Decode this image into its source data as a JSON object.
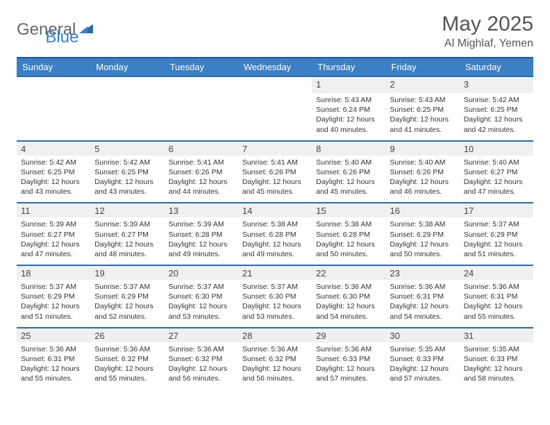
{
  "logo": {
    "general": "General",
    "blue": "Blue"
  },
  "title": "May 2025",
  "location": "Al Mighlaf, Yemen",
  "colors": {
    "header_bg": "#3b7fc4",
    "header_border": "#1f5a99",
    "daynum_bg": "#eef0f2",
    "text": "#333333",
    "title_text": "#555555"
  },
  "dayHeaders": [
    "Sunday",
    "Monday",
    "Tuesday",
    "Wednesday",
    "Thursday",
    "Friday",
    "Saturday"
  ],
  "weeks": [
    [
      null,
      null,
      null,
      null,
      {
        "n": "1",
        "sr": "5:43 AM",
        "ss": "6:24 PM",
        "dl": "12 hours and 40 minutes."
      },
      {
        "n": "2",
        "sr": "5:43 AM",
        "ss": "6:25 PM",
        "dl": "12 hours and 41 minutes."
      },
      {
        "n": "3",
        "sr": "5:42 AM",
        "ss": "6:25 PM",
        "dl": "12 hours and 42 minutes."
      }
    ],
    [
      {
        "n": "4",
        "sr": "5:42 AM",
        "ss": "6:25 PM",
        "dl": "12 hours and 43 minutes."
      },
      {
        "n": "5",
        "sr": "5:42 AM",
        "ss": "6:25 PM",
        "dl": "12 hours and 43 minutes."
      },
      {
        "n": "6",
        "sr": "5:41 AM",
        "ss": "6:26 PM",
        "dl": "12 hours and 44 minutes."
      },
      {
        "n": "7",
        "sr": "5:41 AM",
        "ss": "6:26 PM",
        "dl": "12 hours and 45 minutes."
      },
      {
        "n": "8",
        "sr": "5:40 AM",
        "ss": "6:26 PM",
        "dl": "12 hours and 45 minutes."
      },
      {
        "n": "9",
        "sr": "5:40 AM",
        "ss": "6:26 PM",
        "dl": "12 hours and 46 minutes."
      },
      {
        "n": "10",
        "sr": "5:40 AM",
        "ss": "6:27 PM",
        "dl": "12 hours and 47 minutes."
      }
    ],
    [
      {
        "n": "11",
        "sr": "5:39 AM",
        "ss": "6:27 PM",
        "dl": "12 hours and 47 minutes."
      },
      {
        "n": "12",
        "sr": "5:39 AM",
        "ss": "6:27 PM",
        "dl": "12 hours and 48 minutes."
      },
      {
        "n": "13",
        "sr": "5:39 AM",
        "ss": "6:28 PM",
        "dl": "12 hours and 49 minutes."
      },
      {
        "n": "14",
        "sr": "5:38 AM",
        "ss": "6:28 PM",
        "dl": "12 hours and 49 minutes."
      },
      {
        "n": "15",
        "sr": "5:38 AM",
        "ss": "6:28 PM",
        "dl": "12 hours and 50 minutes."
      },
      {
        "n": "16",
        "sr": "5:38 AM",
        "ss": "6:29 PM",
        "dl": "12 hours and 50 minutes."
      },
      {
        "n": "17",
        "sr": "5:37 AM",
        "ss": "6:29 PM",
        "dl": "12 hours and 51 minutes."
      }
    ],
    [
      {
        "n": "18",
        "sr": "5:37 AM",
        "ss": "6:29 PM",
        "dl": "12 hours and 51 minutes."
      },
      {
        "n": "19",
        "sr": "5:37 AM",
        "ss": "6:29 PM",
        "dl": "12 hours and 52 minutes."
      },
      {
        "n": "20",
        "sr": "5:37 AM",
        "ss": "6:30 PM",
        "dl": "12 hours and 53 minutes."
      },
      {
        "n": "21",
        "sr": "5:37 AM",
        "ss": "6:30 PM",
        "dl": "12 hours and 53 minutes."
      },
      {
        "n": "22",
        "sr": "5:36 AM",
        "ss": "6:30 PM",
        "dl": "12 hours and 54 minutes."
      },
      {
        "n": "23",
        "sr": "5:36 AM",
        "ss": "6:31 PM",
        "dl": "12 hours and 54 minutes."
      },
      {
        "n": "24",
        "sr": "5:36 AM",
        "ss": "6:31 PM",
        "dl": "12 hours and 55 minutes."
      }
    ],
    [
      {
        "n": "25",
        "sr": "5:36 AM",
        "ss": "6:31 PM",
        "dl": "12 hours and 55 minutes."
      },
      {
        "n": "26",
        "sr": "5:36 AM",
        "ss": "6:32 PM",
        "dl": "12 hours and 55 minutes."
      },
      {
        "n": "27",
        "sr": "5:36 AM",
        "ss": "6:32 PM",
        "dl": "12 hours and 56 minutes."
      },
      {
        "n": "28",
        "sr": "5:36 AM",
        "ss": "6:32 PM",
        "dl": "12 hours and 56 minutes."
      },
      {
        "n": "29",
        "sr": "5:36 AM",
        "ss": "6:33 PM",
        "dl": "12 hours and 57 minutes."
      },
      {
        "n": "30",
        "sr": "5:35 AM",
        "ss": "6:33 PM",
        "dl": "12 hours and 57 minutes."
      },
      {
        "n": "31",
        "sr": "5:35 AM",
        "ss": "6:33 PM",
        "dl": "12 hours and 58 minutes."
      }
    ]
  ],
  "labels": {
    "sunrise": "Sunrise:",
    "sunset": "Sunset:",
    "daylight": "Daylight:"
  }
}
